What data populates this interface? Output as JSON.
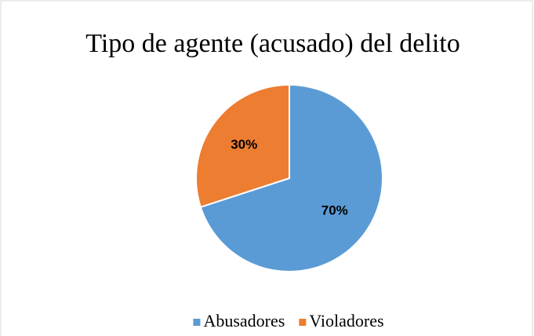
{
  "chart_data": {
    "type": "pie",
    "title": "Tipo de agente (acusado) del delito",
    "categories": [
      "Abusadores",
      "Violadores"
    ],
    "values": [
      70,
      30
    ],
    "value_labels": [
      "70%",
      "30%"
    ],
    "colors": [
      "#5b9bd5",
      "#ed7d31"
    ],
    "legend": "bottom"
  }
}
